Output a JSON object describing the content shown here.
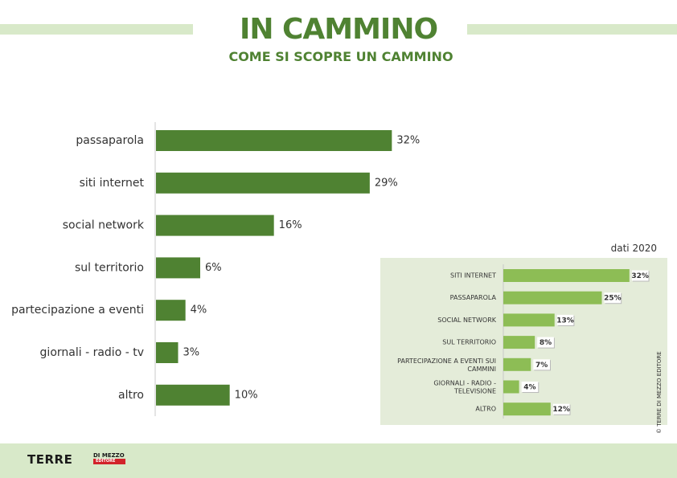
{
  "header": {
    "title": "IN CAMMINO",
    "subtitle": "COME SI SCOPRE UN CAMMINO"
  },
  "chart_data": [
    {
      "type": "bar",
      "orientation": "horizontal",
      "categories": [
        "passaparola",
        "siti internet",
        "social network",
        "sul territorio",
        "partecipazione a eventi",
        "giornali - radio - tv",
        "altro"
      ],
      "values": [
        32,
        29,
        16,
        6,
        4,
        3,
        10
      ],
      "value_labels": [
        "32%",
        "29%",
        "16%",
        "6%",
        "4%",
        "3%",
        "10%"
      ],
      "unit": "%",
      "xlim": [
        0,
        40
      ],
      "grid": false,
      "legend": "none",
      "color": "#4f8232"
    },
    {
      "type": "bar",
      "orientation": "horizontal",
      "title": "dati 2020",
      "categories": [
        "SITI INTERNET",
        "PASSAPAROLA",
        "SOCIAL NETWORK",
        "SUL TERRITORIO",
        "PARTECIPAZIONE A EVENTI SUI CAMMINI",
        "GIORNALI - RADIO - TELEVISIONE",
        "ALTRO"
      ],
      "values": [
        32,
        25,
        13,
        8,
        7,
        4,
        12
      ],
      "value_labels": [
        "32%",
        "25%",
        "13%",
        "8%",
        "7%",
        "4%",
        "12%"
      ],
      "unit": "%",
      "xlim": [
        0,
        40
      ],
      "grid": false,
      "legend": "none",
      "color": "#8dbd55"
    }
  ],
  "credit": {
    "copyright": "© TERRE DI MEZZO EDITORE"
  },
  "footer": {
    "logo_main": "TERRE",
    "logo_top": "DI MEZZO",
    "logo_sub": "EDITORE"
  }
}
